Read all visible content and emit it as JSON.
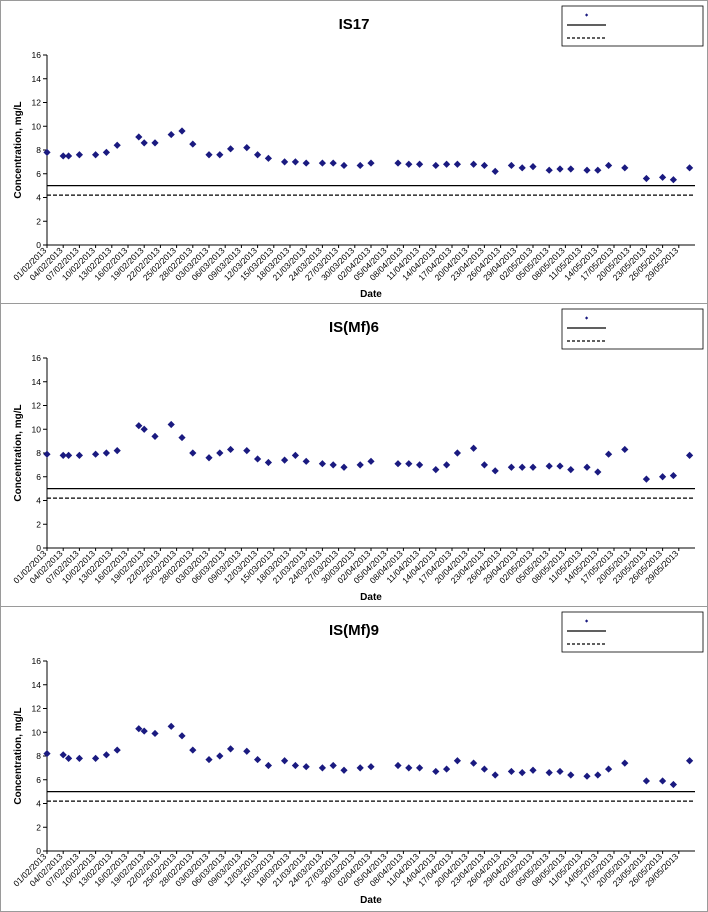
{
  "chart_data": [
    {
      "type": "scatter",
      "title": "IS17",
      "xlabel": "Date",
      "ylabel": "Concentration, mg/L",
      "ylim": [
        0,
        16
      ],
      "yticks": [
        0,
        2,
        4,
        6,
        8,
        10,
        12,
        14,
        16
      ],
      "xlim": [
        "01/02/2013",
        "01/06/2013"
      ],
      "xticks": [
        "01/02/2013",
        "04/02/2013",
        "07/02/2013",
        "10/02/2013",
        "13/02/2013",
        "16/02/2013",
        "19/02/2013",
        "22/02/2013",
        "25/02/2013",
        "28/02/2013",
        "03/03/2013",
        "06/03/2013",
        "09/03/2013",
        "12/03/2013",
        "15/03/2013",
        "18/03/2013",
        "21/03/2013",
        "24/03/2013",
        "27/03/2013",
        "30/03/2013",
        "02/04/2013",
        "05/04/2013",
        "08/04/2013",
        "11/04/2013",
        "14/04/2013",
        "17/04/2013",
        "20/04/2013",
        "23/04/2013",
        "26/04/2013",
        "29/04/2013",
        "02/05/2013",
        "05/05/2013",
        "08/05/2013",
        "11/05/2013",
        "14/05/2013",
        "17/05/2013",
        "20/05/2013",
        "23/05/2013",
        "26/05/2013",
        "29/05/2013"
      ],
      "grid": false,
      "legend": "top-right",
      "reference_lines": [
        {
          "y": 5.0,
          "style": "solid"
        },
        {
          "y": 4.2,
          "style": "dashed"
        }
      ],
      "series": [
        {
          "marker": "diamond",
          "color": "#1a1a80",
          "points": [
            {
              "x": "01/02/2013",
              "y": 7.8
            },
            {
              "x": "04/02/2013",
              "y": 7.5
            },
            {
              "x": "05/02/2013",
              "y": 7.5
            },
            {
              "x": "07/02/2013",
              "y": 7.6
            },
            {
              "x": "10/02/2013",
              "y": 7.6
            },
            {
              "x": "12/02/2013",
              "y": 7.8
            },
            {
              "x": "14/02/2013",
              "y": 8.4
            },
            {
              "x": "18/02/2013",
              "y": 9.1
            },
            {
              "x": "19/02/2013",
              "y": 8.6
            },
            {
              "x": "21/02/2013",
              "y": 8.6
            },
            {
              "x": "24/02/2013",
              "y": 9.3
            },
            {
              "x": "26/02/2013",
              "y": 9.6
            },
            {
              "x": "28/02/2013",
              "y": 8.5
            },
            {
              "x": "03/03/2013",
              "y": 7.6
            },
            {
              "x": "05/03/2013",
              "y": 7.6
            },
            {
              "x": "07/03/2013",
              "y": 8.1
            },
            {
              "x": "10/03/2013",
              "y": 8.2
            },
            {
              "x": "12/03/2013",
              "y": 7.6
            },
            {
              "x": "14/03/2013",
              "y": 7.3
            },
            {
              "x": "17/03/2013",
              "y": 7.0
            },
            {
              "x": "19/03/2013",
              "y": 7.0
            },
            {
              "x": "21/03/2013",
              "y": 6.9
            },
            {
              "x": "24/03/2013",
              "y": 6.9
            },
            {
              "x": "26/03/2013",
              "y": 6.9
            },
            {
              "x": "28/03/2013",
              "y": 6.7
            },
            {
              "x": "31/03/2013",
              "y": 6.7
            },
            {
              "x": "02/04/2013",
              "y": 6.9
            },
            {
              "x": "07/04/2013",
              "y": 6.9
            },
            {
              "x": "09/04/2013",
              "y": 6.8
            },
            {
              "x": "11/04/2013",
              "y": 6.8
            },
            {
              "x": "14/04/2013",
              "y": 6.7
            },
            {
              "x": "16/04/2013",
              "y": 6.8
            },
            {
              "x": "18/04/2013",
              "y": 6.8
            },
            {
              "x": "21/04/2013",
              "y": 6.8
            },
            {
              "x": "23/04/2013",
              "y": 6.7
            },
            {
              "x": "25/04/2013",
              "y": 6.2
            },
            {
              "x": "28/04/2013",
              "y": 6.7
            },
            {
              "x": "30/04/2013",
              "y": 6.5
            },
            {
              "x": "02/05/2013",
              "y": 6.6
            },
            {
              "x": "05/05/2013",
              "y": 6.3
            },
            {
              "x": "07/05/2013",
              "y": 6.4
            },
            {
              "x": "09/05/2013",
              "y": 6.4
            },
            {
              "x": "12/05/2013",
              "y": 6.3
            },
            {
              "x": "14/05/2013",
              "y": 6.3
            },
            {
              "x": "16/05/2013",
              "y": 6.7
            },
            {
              "x": "19/05/2013",
              "y": 6.5
            },
            {
              "x": "23/05/2013",
              "y": 5.6
            },
            {
              "x": "26/05/2013",
              "y": 5.7
            },
            {
              "x": "28/05/2013",
              "y": 5.5
            },
            {
              "x": "31/05/2013",
              "y": 6.5
            }
          ]
        }
      ]
    },
    {
      "type": "scatter",
      "title": "IS(Mf)6",
      "xlabel": "Date",
      "ylabel": "Concentration, mg/L",
      "ylim": [
        0,
        16
      ],
      "yticks": [
        0,
        2,
        4,
        6,
        8,
        10,
        12,
        14,
        16
      ],
      "xlim": [
        "01/02/2013",
        "01/06/2013"
      ],
      "xticks": [
        "01/02/2013",
        "04/02/2013",
        "07/02/2013",
        "10/02/2013",
        "13/02/2013",
        "16/02/2013",
        "19/02/2013",
        "22/02/2013",
        "25/02/2013",
        "28/02/2013",
        "03/03/2013",
        "06/03/2013",
        "09/03/2013",
        "12/03/2013",
        "15/03/2013",
        "18/03/2013",
        "21/03/2013",
        "24/03/2013",
        "27/03/2013",
        "30/03/2013",
        "02/04/2013",
        "05/04/2013",
        "08/04/2013",
        "11/04/2013",
        "14/04/2013",
        "17/04/2013",
        "20/04/2013",
        "23/04/2013",
        "26/04/2013",
        "29/04/2013",
        "02/05/2013",
        "05/05/2013",
        "08/05/2013",
        "11/05/2013",
        "14/05/2013",
        "17/05/2013",
        "20/05/2013",
        "23/05/2013",
        "26/05/2013",
        "29/05/2013"
      ],
      "grid": false,
      "legend": "top-right",
      "reference_lines": [
        {
          "y": 5.0,
          "style": "solid"
        },
        {
          "y": 4.2,
          "style": "dashed"
        }
      ],
      "series": [
        {
          "marker": "diamond",
          "color": "#1a1a80",
          "points": [
            {
              "x": "01/02/2013",
              "y": 7.9
            },
            {
              "x": "04/02/2013",
              "y": 7.8
            },
            {
              "x": "05/02/2013",
              "y": 7.8
            },
            {
              "x": "07/02/2013",
              "y": 7.8
            },
            {
              "x": "10/02/2013",
              "y": 7.9
            },
            {
              "x": "12/02/2013",
              "y": 8.0
            },
            {
              "x": "14/02/2013",
              "y": 8.2
            },
            {
              "x": "18/02/2013",
              "y": 10.3
            },
            {
              "x": "19/02/2013",
              "y": 10.0
            },
            {
              "x": "21/02/2013",
              "y": 9.4
            },
            {
              "x": "24/02/2013",
              "y": 10.4
            },
            {
              "x": "26/02/2013",
              "y": 9.3
            },
            {
              "x": "28/02/2013",
              "y": 8.0
            },
            {
              "x": "03/03/2013",
              "y": 7.6
            },
            {
              "x": "05/03/2013",
              "y": 8.0
            },
            {
              "x": "07/03/2013",
              "y": 8.3
            },
            {
              "x": "10/03/2013",
              "y": 8.2
            },
            {
              "x": "12/03/2013",
              "y": 7.5
            },
            {
              "x": "14/03/2013",
              "y": 7.2
            },
            {
              "x": "17/03/2013",
              "y": 7.4
            },
            {
              "x": "19/03/2013",
              "y": 7.8
            },
            {
              "x": "21/03/2013",
              "y": 7.3
            },
            {
              "x": "24/03/2013",
              "y": 7.1
            },
            {
              "x": "26/03/2013",
              "y": 7.0
            },
            {
              "x": "28/03/2013",
              "y": 6.8
            },
            {
              "x": "31/03/2013",
              "y": 7.0
            },
            {
              "x": "02/04/2013",
              "y": 7.3
            },
            {
              "x": "07/04/2013",
              "y": 7.1
            },
            {
              "x": "09/04/2013",
              "y": 7.1
            },
            {
              "x": "11/04/2013",
              "y": 7.0
            },
            {
              "x": "14/04/2013",
              "y": 6.6
            },
            {
              "x": "16/04/2013",
              "y": 7.0
            },
            {
              "x": "18/04/2013",
              "y": 8.0
            },
            {
              "x": "21/04/2013",
              "y": 8.4
            },
            {
              "x": "23/04/2013",
              "y": 7.0
            },
            {
              "x": "25/04/2013",
              "y": 6.5
            },
            {
              "x": "28/04/2013",
              "y": 6.8
            },
            {
              "x": "30/04/2013",
              "y": 6.8
            },
            {
              "x": "02/05/2013",
              "y": 6.8
            },
            {
              "x": "05/05/2013",
              "y": 6.9
            },
            {
              "x": "07/05/2013",
              "y": 6.9
            },
            {
              "x": "09/05/2013",
              "y": 6.6
            },
            {
              "x": "12/05/2013",
              "y": 6.8
            },
            {
              "x": "14/05/2013",
              "y": 6.4
            },
            {
              "x": "16/05/2013",
              "y": 7.9
            },
            {
              "x": "19/05/2013",
              "y": 8.3
            },
            {
              "x": "23/05/2013",
              "y": 5.8
            },
            {
              "x": "26/05/2013",
              "y": 6.0
            },
            {
              "x": "28/05/2013",
              "y": 6.1
            },
            {
              "x": "31/05/2013",
              "y": 7.8
            }
          ]
        }
      ]
    },
    {
      "type": "scatter",
      "title": "IS(Mf)9",
      "xlabel": "Date",
      "ylabel": "Concentration, mg/L",
      "ylim": [
        0,
        16
      ],
      "yticks": [
        0,
        2,
        4,
        6,
        8,
        10,
        12,
        14,
        16
      ],
      "xlim": [
        "01/02/2013",
        "01/06/2013"
      ],
      "xticks": [
        "01/02/2013",
        "04/02/2013",
        "07/02/2013",
        "10/02/2013",
        "13/02/2013",
        "16/02/2013",
        "19/02/2013",
        "22/02/2013",
        "25/02/2013",
        "28/02/2013",
        "03/03/2013",
        "06/03/2013",
        "09/03/2013",
        "12/03/2013",
        "15/03/2013",
        "18/03/2013",
        "21/03/2013",
        "24/03/2013",
        "27/03/2013",
        "30/03/2013",
        "02/04/2013",
        "05/04/2013",
        "08/04/2013",
        "11/04/2013",
        "14/04/2013",
        "17/04/2013",
        "20/04/2013",
        "23/04/2013",
        "26/04/2013",
        "29/04/2013",
        "02/05/2013",
        "05/05/2013",
        "08/05/2013",
        "11/05/2013",
        "14/05/2013",
        "17/05/2013",
        "20/05/2013",
        "23/05/2013",
        "26/05/2013",
        "29/05/2013"
      ],
      "grid": false,
      "legend": "top-right",
      "reference_lines": [
        {
          "y": 5.0,
          "style": "solid"
        },
        {
          "y": 4.2,
          "style": "dashed"
        }
      ],
      "series": [
        {
          "marker": "diamond",
          "color": "#1a1a80",
          "points": [
            {
              "x": "01/02/2013",
              "y": 8.2
            },
            {
              "x": "04/02/2013",
              "y": 8.1
            },
            {
              "x": "05/02/2013",
              "y": 7.8
            },
            {
              "x": "07/02/2013",
              "y": 7.8
            },
            {
              "x": "10/02/2013",
              "y": 7.8
            },
            {
              "x": "12/02/2013",
              "y": 8.1
            },
            {
              "x": "14/02/2013",
              "y": 8.5
            },
            {
              "x": "18/02/2013",
              "y": 10.3
            },
            {
              "x": "19/02/2013",
              "y": 10.1
            },
            {
              "x": "21/02/2013",
              "y": 9.9
            },
            {
              "x": "24/02/2013",
              "y": 10.5
            },
            {
              "x": "26/02/2013",
              "y": 9.7
            },
            {
              "x": "28/02/2013",
              "y": 8.5
            },
            {
              "x": "03/03/2013",
              "y": 7.7
            },
            {
              "x": "05/03/2013",
              "y": 8.0
            },
            {
              "x": "07/03/2013",
              "y": 8.6
            },
            {
              "x": "10/03/2013",
              "y": 8.4
            },
            {
              "x": "12/03/2013",
              "y": 7.7
            },
            {
              "x": "14/03/2013",
              "y": 7.2
            },
            {
              "x": "17/03/2013",
              "y": 7.6
            },
            {
              "x": "19/03/2013",
              "y": 7.2
            },
            {
              "x": "21/03/2013",
              "y": 7.1
            },
            {
              "x": "24/03/2013",
              "y": 7.0
            },
            {
              "x": "26/03/2013",
              "y": 7.2
            },
            {
              "x": "28/03/2013",
              "y": 6.8
            },
            {
              "x": "31/03/2013",
              "y": 7.0
            },
            {
              "x": "02/04/2013",
              "y": 7.1
            },
            {
              "x": "07/04/2013",
              "y": 7.2
            },
            {
              "x": "09/04/2013",
              "y": 7.0
            },
            {
              "x": "11/04/2013",
              "y": 7.0
            },
            {
              "x": "14/04/2013",
              "y": 6.7
            },
            {
              "x": "16/04/2013",
              "y": 6.9
            },
            {
              "x": "18/04/2013",
              "y": 7.6
            },
            {
              "x": "21/04/2013",
              "y": 7.4
            },
            {
              "x": "23/04/2013",
              "y": 6.9
            },
            {
              "x": "25/04/2013",
              "y": 6.4
            },
            {
              "x": "28/04/2013",
              "y": 6.7
            },
            {
              "x": "30/04/2013",
              "y": 6.6
            },
            {
              "x": "02/05/2013",
              "y": 6.8
            },
            {
              "x": "05/05/2013",
              "y": 6.6
            },
            {
              "x": "07/05/2013",
              "y": 6.7
            },
            {
              "x": "09/05/2013",
              "y": 6.4
            },
            {
              "x": "12/05/2013",
              "y": 6.3
            },
            {
              "x": "14/05/2013",
              "y": 6.4
            },
            {
              "x": "16/05/2013",
              "y": 6.9
            },
            {
              "x": "19/05/2013",
              "y": 7.4
            },
            {
              "x": "23/05/2013",
              "y": 5.9
            },
            {
              "x": "26/05/2013",
              "y": 5.9
            },
            {
              "x": "28/05/2013",
              "y": 5.6
            },
            {
              "x": "31/05/2013",
              "y": 7.6
            }
          ]
        }
      ]
    }
  ]
}
